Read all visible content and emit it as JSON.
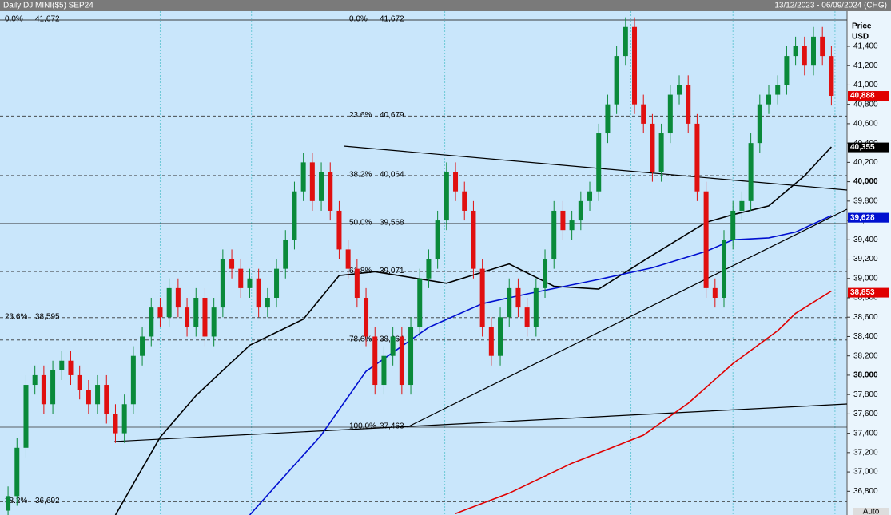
{
  "chart_data": {
    "type": "candlestick",
    "title": "Daily DJ MINI($5) SEP24",
    "subtitle": "13/12/2023 - 06/09/2024 (CHG)",
    "y_axis_label": "Price",
    "y_axis_unit": "USD",
    "footer": "Auto",
    "up_color": "#0a8a3a",
    "down_color": "#e01010",
    "xlim": [
      -0.9,
      93.75
    ],
    "xticks": [
      17,
      27.2,
      48.8,
      69.6,
      81,
      92.4
    ],
    "ylim": [
      36555,
      41763
    ],
    "yticks": [
      {
        "value": 36800,
        "label": "36,800"
      },
      {
        "value": 37000,
        "label": "37,000"
      },
      {
        "value": 37200,
        "label": "37,200"
      },
      {
        "value": 37400,
        "label": "37,400"
      },
      {
        "value": 37600,
        "label": "37,600"
      },
      {
        "value": 37800,
        "label": "37,800"
      },
      {
        "value": 38000,
        "label": "38,000"
      },
      {
        "value": 38200,
        "label": "38,200"
      },
      {
        "value": 38400,
        "label": "38,400"
      },
      {
        "value": 38600,
        "label": "38,600"
      },
      {
        "value": 38800,
        "label": "38,800"
      },
      {
        "value": 39000,
        "label": "39,000"
      },
      {
        "value": 39200,
        "label": "39,200"
      },
      {
        "value": 39400,
        "label": "39,400"
      },
      {
        "value": 39600,
        "label": "39,600"
      },
      {
        "value": 39800,
        "label": "39,800"
      },
      {
        "value": 40000,
        "label": "40,000"
      },
      {
        "value": 40200,
        "label": "40,200"
      },
      {
        "value": 40400,
        "label": "40,400"
      },
      {
        "value": 40600,
        "label": "40,600"
      },
      {
        "value": 40800,
        "label": "40,800"
      },
      {
        "value": 41000,
        "label": "41,000"
      },
      {
        "value": 41200,
        "label": "41,200"
      },
      {
        "value": 41400,
        "label": "41,400"
      }
    ],
    "candles": [
      [
        36600,
        36850,
        36500,
        36750
      ],
      [
        36750,
        37350,
        36650,
        37250
      ],
      [
        37250,
        38000,
        37150,
        37900
      ],
      [
        37900,
        38100,
        37800,
        38000
      ],
      [
        38000,
        38100,
        37600,
        37700
      ],
      [
        37700,
        38150,
        37600,
        38050
      ],
      [
        38050,
        38250,
        37950,
        38150
      ],
      [
        38150,
        38250,
        37900,
        38000
      ],
      [
        38000,
        38100,
        37750,
        37850
      ],
      [
        37850,
        37950,
        37600,
        37700
      ],
      [
        37700,
        38000,
        37600,
        37900
      ],
      [
        37900,
        38000,
        37500,
        37600
      ],
      [
        37600,
        37700,
        37300,
        37400
      ],
      [
        37400,
        37800,
        37300,
        37700
      ],
      [
        37700,
        38300,
        37600,
        38200
      ],
      [
        38200,
        38500,
        38100,
        38400
      ],
      [
        38400,
        38800,
        38300,
        38700
      ],
      [
        38700,
        38800,
        38500,
        38600
      ],
      [
        38600,
        39000,
        38500,
        38900
      ],
      [
        38900,
        39000,
        38600,
        38700
      ],
      [
        38700,
        38800,
        38400,
        38500
      ],
      [
        38500,
        38900,
        38400,
        38800
      ],
      [
        38800,
        38900,
        38300,
        38400
      ],
      [
        38400,
        38800,
        38300,
        38700
      ],
      [
        38700,
        39300,
        38600,
        39200
      ],
      [
        39200,
        39300,
        39000,
        39100
      ],
      [
        39100,
        39200,
        38800,
        38900
      ],
      [
        38900,
        39100,
        38800,
        39000
      ],
      [
        39000,
        39100,
        38600,
        38700
      ],
      [
        38700,
        38900,
        38600,
        38800
      ],
      [
        38800,
        39200,
        38700,
        39100
      ],
      [
        39100,
        39500,
        39000,
        39400
      ],
      [
        39400,
        40000,
        39300,
        39900
      ],
      [
        39900,
        40300,
        39800,
        40200
      ],
      [
        40200,
        40300,
        39700,
        39800
      ],
      [
        39800,
        40200,
        39700,
        40100
      ],
      [
        40100,
        40200,
        39600,
        39700
      ],
      [
        39700,
        39800,
        39200,
        39300
      ],
      [
        39300,
        39400,
        39000,
        39100
      ],
      [
        39100,
        39200,
        38700,
        38800
      ],
      [
        38800,
        38900,
        38300,
        38400
      ],
      [
        38400,
        38500,
        37800,
        37900
      ],
      [
        37900,
        38300,
        37800,
        38200
      ],
      [
        38200,
        38500,
        38100,
        38400
      ],
      [
        38400,
        38500,
        37800,
        37900
      ],
      [
        37900,
        38600,
        37800,
        38500
      ],
      [
        38500,
        39100,
        38400,
        39000
      ],
      [
        39000,
        39300,
        38900,
        39200
      ],
      [
        39200,
        39700,
        39100,
        39600
      ],
      [
        39600,
        40200,
        39500,
        40100
      ],
      [
        40100,
        40200,
        39800,
        39900
      ],
      [
        39900,
        40000,
        39600,
        39700
      ],
      [
        39700,
        39800,
        39000,
        39100
      ],
      [
        39100,
        39200,
        38400,
        38500
      ],
      [
        38500,
        38600,
        38100,
        38200
      ],
      [
        38200,
        38700,
        38100,
        38600
      ],
      [
        38600,
        39000,
        38500,
        38900
      ],
      [
        38900,
        39000,
        38600,
        38700
      ],
      [
        38700,
        38800,
        38400,
        38500
      ],
      [
        38500,
        39000,
        38400,
        38900
      ],
      [
        38900,
        39300,
        38800,
        39200
      ],
      [
        39200,
        39800,
        39100,
        39700
      ],
      [
        39700,
        39800,
        39400,
        39500
      ],
      [
        39500,
        39700,
        39400,
        39600
      ],
      [
        39600,
        39900,
        39500,
        39800
      ],
      [
        39800,
        40000,
        39700,
        39900
      ],
      [
        39900,
        40600,
        39800,
        40500
      ],
      [
        40500,
        40900,
        40400,
        40800
      ],
      [
        40800,
        41400,
        40700,
        41300
      ],
      [
        41300,
        41700,
        41200,
        41600
      ],
      [
        41600,
        41700,
        40700,
        40800
      ],
      [
        40800,
        40900,
        40500,
        40600
      ],
      [
        40600,
        40700,
        40000,
        40100
      ],
      [
        40100,
        40600,
        40000,
        40500
      ],
      [
        40500,
        41000,
        40400,
        40900
      ],
      [
        40900,
        41100,
        40800,
        41000
      ],
      [
        41000,
        41100,
        40500,
        40600
      ],
      [
        40600,
        40700,
        39800,
        39900
      ],
      [
        39900,
        40000,
        38800,
        38900
      ],
      [
        38900,
        39000,
        38700,
        38800
      ],
      [
        38800,
        39500,
        38700,
        39400
      ],
      [
        39400,
        39800,
        39300,
        39700
      ],
      [
        39700,
        39900,
        39600,
        39800
      ],
      [
        39800,
        40500,
        39700,
        40400
      ],
      [
        40400,
        40900,
        40300,
        40800
      ],
      [
        40800,
        41000,
        40700,
        40900
      ],
      [
        40900,
        41100,
        40800,
        41000
      ],
      [
        41000,
        41400,
        40900,
        41300
      ],
      [
        41300,
        41500,
        41200,
        41400
      ],
      [
        41400,
        41500,
        41100,
        41200
      ],
      [
        41200,
        41600,
        41100,
        41500
      ],
      [
        41500,
        41600,
        41200,
        41300
      ],
      [
        41300,
        41400,
        40788,
        40888
      ]
    ],
    "series": [
      {
        "color": "#000000",
        "x": [
          12,
          17,
          21,
          27,
          33,
          37,
          41,
          49,
          56,
          61,
          66,
          72,
          78,
          81,
          85,
          89,
          92
        ],
        "values": [
          36555,
          37360,
          37790,
          38310,
          38580,
          39030,
          39070,
          38950,
          39150,
          38920,
          38890,
          39240,
          39580,
          39660,
          39750,
          40060,
          40360
        ]
      },
      {
        "color": "#0010d0",
        "x": [
          27,
          35,
          40,
          47,
          53,
          58,
          66,
          72,
          78,
          81,
          85,
          88,
          92
        ],
        "values": [
          36555,
          37380,
          38040,
          38495,
          38740,
          38840,
          38990,
          39110,
          39280,
          39400,
          39420,
          39480,
          39650
        ]
      },
      {
        "color": "#e00000",
        "x": [
          50,
          56,
          63,
          71,
          76,
          81,
          86,
          88,
          92
        ],
        "values": [
          36570,
          36780,
          37090,
          37380,
          37710,
          38120,
          38460,
          38640,
          38870
        ]
      }
    ],
    "trendlines": [
      {
        "x": [
          37.5,
          93.75
        ],
        "values": [
          40368,
          39914
        ]
      },
      {
        "x": [
          11.9,
          93.75
        ],
        "values": [
          37315,
          37702
        ]
      },
      {
        "x": [
          44.6,
          93.75
        ],
        "values": [
          37463,
          39716
        ]
      }
    ],
    "fib_right": [
      {
        "label": "0.0%",
        "value": 41672,
        "value_label": "41,672",
        "dashed": false
      },
      {
        "label": "23.6%",
        "value": 40679,
        "value_label": "40,679",
        "dashed": true
      },
      {
        "label": "38.2%",
        "value": 40064,
        "value_label": "40,064",
        "dashed": true
      },
      {
        "label": "50.0%",
        "value": 39568,
        "value_label": "39,568",
        "dashed": false
      },
      {
        "label": "61.8%",
        "value": 39071,
        "value_label": "39,071",
        "dashed": true
      },
      {
        "label": "78.6%",
        "value": 38364,
        "value_label": "38,364",
        "dashed": true
      },
      {
        "label": "100.0%",
        "value": 37463,
        "value_label": "37,463",
        "dashed": false
      }
    ],
    "fib_left": [
      {
        "label": "0.0%",
        "value": 41672,
        "value_label": "41,672",
        "dashed": false
      },
      {
        "label": "23.6%",
        "value": 38595,
        "value_label": "38,595",
        "dashed": true
      },
      {
        "label": "38.2%",
        "value": 36692,
        "value_label": "36,692",
        "dashed": true
      }
    ],
    "price_tags": [
      {
        "value": 40888,
        "label": "40,888",
        "color": "#e00000"
      },
      {
        "value": 40355,
        "label": "40,355",
        "color": "#000000"
      },
      {
        "value": 39629,
        "label": "39,629",
        "color": "#1a7fd0"
      },
      {
        "value": 39628,
        "label": "39,628",
        "color": "#0010d0"
      },
      {
        "value": 38853,
        "label": "38,853",
        "color": "#e00000"
      }
    ]
  }
}
